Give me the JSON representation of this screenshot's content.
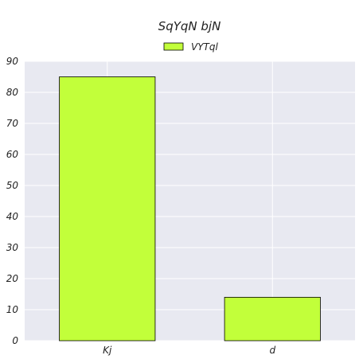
{
  "chart_data": {
    "type": "bar",
    "title": "SqYqN bjN",
    "xlabel": "",
    "ylabel": "",
    "categories": [
      "Kj",
      "d"
    ],
    "series": [
      {
        "name": "VYTql",
        "values": [
          85,
          14
        ]
      }
    ],
    "ylim": [
      0,
      90
    ],
    "yticks": [
      0,
      10,
      20,
      30,
      40,
      50,
      60,
      70,
      80,
      90
    ],
    "grid": true,
    "legend_position": "top-center",
    "colors": {
      "bar": "#c2ff3a",
      "plot_background": "#e8e9f1",
      "grid": "#ffffff"
    }
  }
}
